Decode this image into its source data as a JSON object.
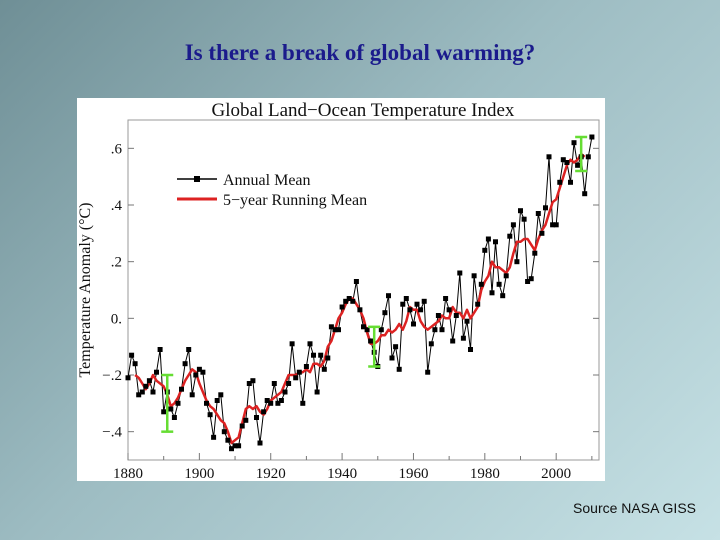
{
  "slide": {
    "title": "Is there a break of global warming?",
    "source": "Source NASA GISS"
  },
  "colors": {
    "annual": "#000000",
    "running": "#dd2222",
    "error_bars": "#66dd33"
  },
  "chart_data": {
    "type": "line",
    "title": "Global Land−Ocean Temperature Index",
    "xlabel": "",
    "ylabel": "Temperature Anomaly (°C)",
    "xlim": [
      1880,
      2012
    ],
    "ylim": [
      -0.5,
      0.7
    ],
    "x_ticks": [
      1880,
      1900,
      1920,
      1940,
      1960,
      1980,
      2000
    ],
    "y_ticks": [
      -0.4,
      -0.2,
      0.0,
      0.2,
      0.4,
      0.6
    ],
    "y_tick_labels": [
      "−.4",
      "−.2",
      "0.",
      ".2",
      ".4",
      ".6"
    ],
    "legend": [
      "Annual Mean",
      "5−year Running Mean"
    ],
    "legend_position": "upper-left",
    "series": [
      {
        "name": "Annual Mean",
        "x": [
          1880,
          1881,
          1882,
          1883,
          1884,
          1885,
          1886,
          1887,
          1888,
          1889,
          1890,
          1891,
          1892,
          1893,
          1894,
          1895,
          1896,
          1897,
          1898,
          1899,
          1900,
          1901,
          1902,
          1903,
          1904,
          1905,
          1906,
          1907,
          1908,
          1909,
          1910,
          1911,
          1912,
          1913,
          1914,
          1915,
          1916,
          1917,
          1918,
          1919,
          1920,
          1921,
          1922,
          1923,
          1924,
          1925,
          1926,
          1927,
          1928,
          1929,
          1930,
          1931,
          1932,
          1933,
          1934,
          1935,
          1936,
          1937,
          1938,
          1939,
          1940,
          1941,
          1942,
          1943,
          1944,
          1945,
          1946,
          1947,
          1948,
          1949,
          1950,
          1951,
          1952,
          1953,
          1954,
          1955,
          1956,
          1957,
          1958,
          1959,
          1960,
          1961,
          1962,
          1963,
          1964,
          1965,
          1966,
          1967,
          1968,
          1969,
          1970,
          1971,
          1972,
          1973,
          1974,
          1975,
          1976,
          1977,
          1978,
          1979,
          1980,
          1981,
          1982,
          1983,
          1984,
          1985,
          1986,
          1987,
          1988,
          1989,
          1990,
          1991,
          1992,
          1993,
          1994,
          1995,
          1996,
          1997,
          1998,
          1999,
          2000,
          2001,
          2002,
          2003,
          2004,
          2005,
          2006,
          2007,
          2008,
          2009,
          2010
        ],
        "values": [
          -0.21,
          -0.13,
          -0.16,
          -0.27,
          -0.26,
          -0.24,
          -0.22,
          -0.26,
          -0.19,
          -0.11,
          -0.33,
          -0.26,
          -0.32,
          -0.35,
          -0.3,
          -0.25,
          -0.16,
          -0.11,
          -0.27,
          -0.2,
          -0.18,
          -0.19,
          -0.3,
          -0.34,
          -0.42,
          -0.29,
          -0.27,
          -0.4,
          -0.43,
          -0.46,
          -0.45,
          -0.45,
          -0.38,
          -0.36,
          -0.23,
          -0.22,
          -0.35,
          -0.44,
          -0.33,
          -0.29,
          -0.3,
          -0.23,
          -0.3,
          -0.29,
          -0.26,
          -0.23,
          -0.09,
          -0.21,
          -0.19,
          -0.3,
          -0.17,
          -0.09,
          -0.13,
          -0.26,
          -0.13,
          -0.18,
          -0.14,
          -0.03,
          -0.04,
          -0.04,
          0.04,
          0.06,
          0.07,
          0.06,
          0.13,
          0.03,
          -0.03,
          -0.04,
          -0.08,
          -0.12,
          -0.17,
          -0.04,
          0.02,
          0.08,
          -0.14,
          -0.1,
          -0.18,
          0.05,
          0.07,
          0.03,
          -0.02,
          0.05,
          0.03,
          0.06,
          -0.19,
          -0.09,
          -0.04,
          0.01,
          -0.04,
          0.07,
          0.03,
          -0.08,
          0.01,
          0.16,
          -0.07,
          -0.01,
          -0.11,
          0.15,
          0.05,
          0.12,
          0.24,
          0.28,
          0.09,
          0.27,
          0.12,
          0.08,
          0.15,
          0.29,
          0.33,
          0.2,
          0.38,
          0.35,
          0.13,
          0.14,
          0.23,
          0.37,
          0.3,
          0.39,
          0.57,
          0.33,
          0.33,
          0.48,
          0.56,
          0.55,
          0.48,
          0.62,
          0.54,
          0.57,
          0.44,
          0.57,
          0.64
        ]
      },
      {
        "name": "5−year Running Mean",
        "x": [
          1882,
          1883,
          1884,
          1885,
          1886,
          1887,
          1888,
          1889,
          1890,
          1891,
          1892,
          1893,
          1894,
          1895,
          1896,
          1897,
          1898,
          1899,
          1900,
          1901,
          1902,
          1903,
          1904,
          1905,
          1906,
          1907,
          1908,
          1909,
          1910,
          1911,
          1912,
          1913,
          1914,
          1915,
          1916,
          1917,
          1918,
          1919,
          1920,
          1921,
          1922,
          1923,
          1924,
          1925,
          1926,
          1927,
          1928,
          1929,
          1930,
          1931,
          1932,
          1933,
          1934,
          1935,
          1936,
          1937,
          1938,
          1939,
          1940,
          1941,
          1942,
          1943,
          1944,
          1945,
          1946,
          1947,
          1948,
          1949,
          1950,
          1951,
          1952,
          1953,
          1954,
          1955,
          1956,
          1957,
          1958,
          1959,
          1960,
          1961,
          1962,
          1963,
          1964,
          1965,
          1966,
          1967,
          1968,
          1969,
          1970,
          1971,
          1972,
          1973,
          1974,
          1975,
          1976,
          1977,
          1978,
          1979,
          1980,
          1981,
          1982,
          1983,
          1984,
          1985,
          1986,
          1987,
          1988,
          1989,
          1990,
          1991,
          1992,
          1993,
          1994,
          1995,
          1996,
          1997,
          1998,
          1999,
          2000,
          2001,
          2002,
          2003,
          2004,
          2005,
          2006,
          2007,
          2008
        ],
        "values": [
          -0.2,
          -0.21,
          -0.23,
          -0.25,
          -0.23,
          -0.2,
          -0.22,
          -0.23,
          -0.24,
          -0.27,
          -0.31,
          -0.3,
          -0.28,
          -0.25,
          -0.22,
          -0.2,
          -0.18,
          -0.19,
          -0.23,
          -0.26,
          -0.29,
          -0.31,
          -0.32,
          -0.34,
          -0.36,
          -0.37,
          -0.4,
          -0.44,
          -0.43,
          -0.42,
          -0.37,
          -0.32,
          -0.31,
          -0.32,
          -0.31,
          -0.33,
          -0.34,
          -0.32,
          -0.29,
          -0.28,
          -0.27,
          -0.26,
          -0.23,
          -0.2,
          -0.2,
          -0.2,
          -0.19,
          -0.19,
          -0.18,
          -0.19,
          -0.16,
          -0.16,
          -0.17,
          -0.15,
          -0.1,
          -0.08,
          -0.04,
          0.0,
          0.02,
          0.05,
          0.07,
          0.07,
          0.05,
          0.03,
          0.0,
          -0.05,
          -0.09,
          -0.09,
          -0.08,
          -0.06,
          -0.06,
          -0.04,
          -0.05,
          -0.04,
          -0.02,
          -0.04,
          -0.01,
          0.04,
          0.03,
          0.03,
          -0.01,
          -0.03,
          -0.04,
          -0.03,
          -0.02,
          -0.01,
          0.01,
          -0.0,
          0.0,
          0.04,
          0.02,
          0.02,
          0.0,
          0.03,
          0.0,
          0.02,
          0.04,
          0.1,
          0.13,
          0.15,
          0.2,
          0.18,
          0.18,
          0.17,
          0.16,
          0.18,
          0.23,
          0.27,
          0.27,
          0.28,
          0.28,
          0.26,
          0.24,
          0.28,
          0.31,
          0.33,
          0.37,
          0.41,
          0.42,
          0.46,
          0.5,
          0.54,
          0.56,
          0.55,
          0.56,
          0.58,
          0.57
        ]
      }
    ],
    "error_bars": [
      {
        "x": 1891,
        "low": -0.4,
        "high": -0.2
      },
      {
        "x": 1949,
        "low": -0.17,
        "high": -0.03
      },
      {
        "x": 2007,
        "low": 0.52,
        "high": 0.64
      }
    ]
  }
}
